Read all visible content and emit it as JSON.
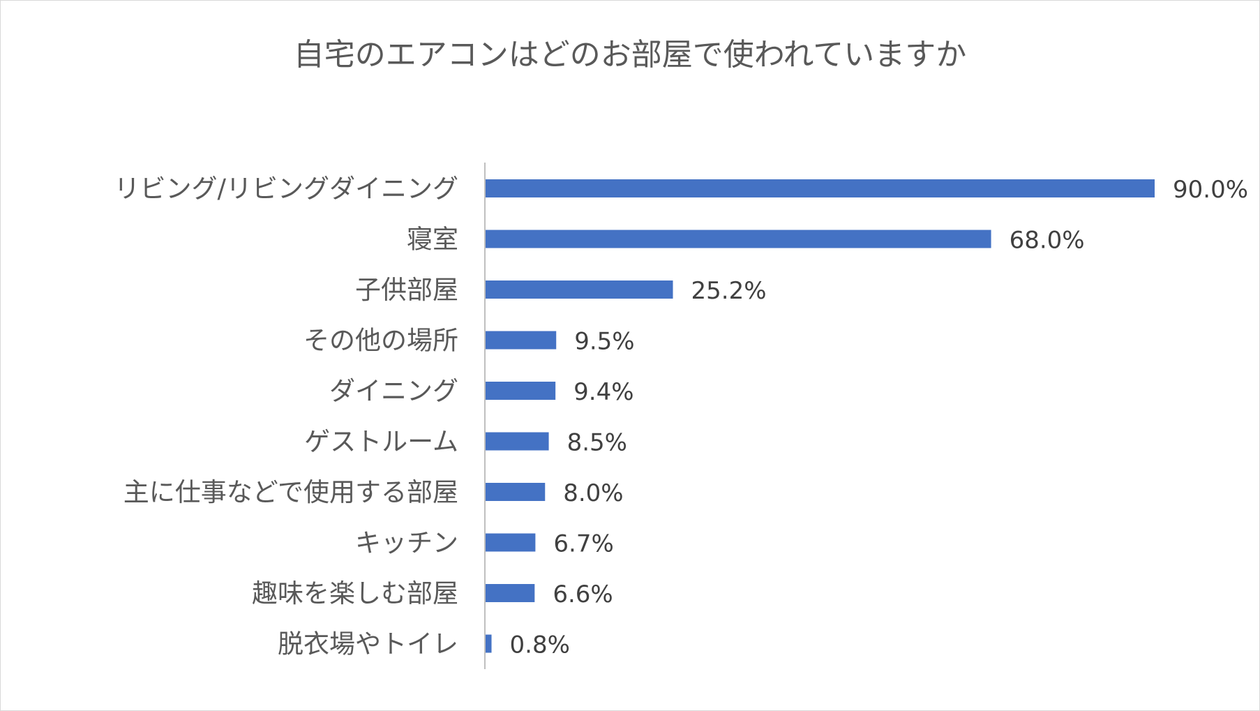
{
  "chart_data": {
    "type": "bar",
    "orientation": "horizontal",
    "title": "自宅のエアコンはどのお部屋で使われていますか",
    "categories": [
      "リビング/リビングダイニング",
      "寝室",
      "子供部屋",
      "その他の場所",
      "ダイニング",
      "ゲストルーム",
      "主に仕事などで使用する部屋",
      "キッチン",
      "趣味を楽しむ部屋",
      "脱衣場やトイレ"
    ],
    "values": [
      90.0,
      68.0,
      25.2,
      9.5,
      9.4,
      8.5,
      8.0,
      6.7,
      6.6,
      0.8
    ],
    "data_labels": [
      "90.0%",
      "68.0%",
      "25.2%",
      "9.5%",
      "9.4%",
      "8.5%",
      "8.0%",
      "6.7%",
      "6.6%",
      "0.8%"
    ],
    "unit": "%",
    "xlim": [
      0,
      90
    ],
    "grid": false,
    "legend": "none",
    "colors": {
      "bar": "#4472c4",
      "axis": "#bfbfbf",
      "title": "#595959",
      "category_text": "#595959",
      "label_text": "#404040",
      "border": "#d9d9d9"
    }
  }
}
